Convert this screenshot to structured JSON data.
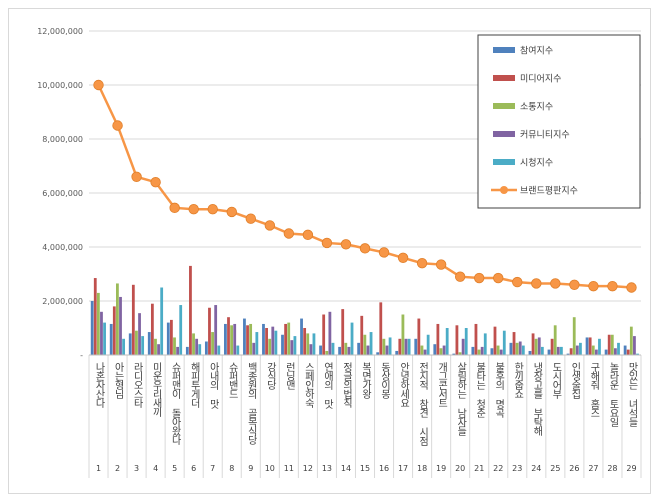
{
  "chart_data": {
    "type": "bar",
    "title": "",
    "xlabel": "",
    "ylabel": "",
    "ylim": [
      0,
      12000000
    ],
    "yticks": [
      "-",
      "2,000,000",
      "4,000,000",
      "6,000,000",
      "8,000,000",
      "10,000,000",
      "12,000,000"
    ],
    "ytick_values": [
      0,
      2000000,
      4000000,
      6000000,
      8000000,
      10000000,
      12000000
    ],
    "grid": true,
    "legend_position": "top-right",
    "categories": [
      "나혼자산다",
      "아는형님",
      "라디오스타",
      "미운우리새끼",
      "슈퍼맨이 돌아왔다",
      "해피투게더",
      "아내의 맛",
      "슈퍼밴드",
      "백종원의 골목식당",
      "강식당",
      "런닝맨",
      "스페인하숙",
      "연애의 맛",
      "정글의법칙",
      "복면가왕",
      "동상이몽",
      "안녕하세요",
      "전지적 참견 시점",
      "개그콘서트",
      "살림하는 남자들",
      "불타는 청춘",
      "불후의 명곡",
      "한끼줍쇼",
      "냉장고를 부탁해",
      "도시어부",
      "인생술집",
      "구해줘 홈즈",
      "놀라운 토요일",
      "맛있는 녀석들"
    ],
    "indices": [
      "1",
      "2",
      "3",
      "4",
      "5",
      "6",
      "7",
      "8",
      "9",
      "10",
      "11",
      "12",
      "13",
      "14",
      "15",
      "16",
      "17",
      "18",
      "19",
      "20",
      "21",
      "22",
      "23",
      "24",
      "25",
      "26",
      "27",
      "28",
      "29"
    ],
    "series": [
      {
        "name": "참여지수",
        "type": "bar",
        "color": "#4f81bd",
        "values": [
          2000000,
          1150000,
          800000,
          850000,
          1200000,
          300000,
          500000,
          1150000,
          1350000,
          1150000,
          750000,
          1350000,
          350000,
          300000,
          450000,
          100000,
          150000,
          600000,
          400000,
          50000,
          300000,
          250000,
          450000,
          150000,
          200000,
          50000,
          650000,
          200000,
          350000
        ]
      },
      {
        "name": "미디어지수",
        "type": "bar",
        "color": "#c0504d",
        "values": [
          2850000,
          1800000,
          2600000,
          1900000,
          1300000,
          3300000,
          1750000,
          1400000,
          1100000,
          1000000,
          1150000,
          1000000,
          1500000,
          1700000,
          1450000,
          1950000,
          600000,
          1350000,
          1150000,
          1100000,
          1150000,
          1050000,
          850000,
          800000,
          600000,
          250000,
          650000,
          750000,
          200000
        ]
      },
      {
        "name": "소통지수",
        "type": "bar",
        "color": "#9bbb59",
        "values": [
          2300000,
          2650000,
          900000,
          600000,
          650000,
          800000,
          850000,
          1100000,
          1150000,
          600000,
          1200000,
          800000,
          150000,
          450000,
          750000,
          600000,
          1500000,
          350000,
          250000,
          100000,
          200000,
          350000,
          450000,
          600000,
          1100000,
          1400000,
          350000,
          750000,
          1050000
        ]
      },
      {
        "name": "커뮤니티지수",
        "type": "bar",
        "color": "#8064a2",
        "values": [
          1600000,
          2150000,
          1550000,
          400000,
          300000,
          600000,
          1850000,
          1150000,
          450000,
          1050000,
          550000,
          400000,
          1600000,
          300000,
          350000,
          350000,
          600000,
          200000,
          350000,
          600000,
          300000,
          200000,
          500000,
          650000,
          300000,
          350000,
          200000,
          250000,
          700000
        ]
      },
      {
        "name": "시청지수",
        "type": "bar",
        "color": "#4bacc6",
        "values": [
          1200000,
          600000,
          700000,
          2500000,
          1850000,
          400000,
          350000,
          350000,
          850000,
          900000,
          700000,
          800000,
          450000,
          1200000,
          850000,
          650000,
          600000,
          750000,
          1000000,
          1000000,
          800000,
          900000,
          350000,
          300000,
          300000,
          450000,
          600000,
          450000,
          50000
        ]
      },
      {
        "name": "브랜드평판지수",
        "type": "line",
        "color": "#f79646",
        "values": [
          10000000,
          8500000,
          6600000,
          6400000,
          5450000,
          5400000,
          5400000,
          5300000,
          5050000,
          4800000,
          4500000,
          4450000,
          4150000,
          4100000,
          3950000,
          3800000,
          3600000,
          3400000,
          3350000,
          2900000,
          2850000,
          2850000,
          2700000,
          2650000,
          2650000,
          2600000,
          2550000,
          2550000,
          2500000
        ]
      }
    ]
  }
}
